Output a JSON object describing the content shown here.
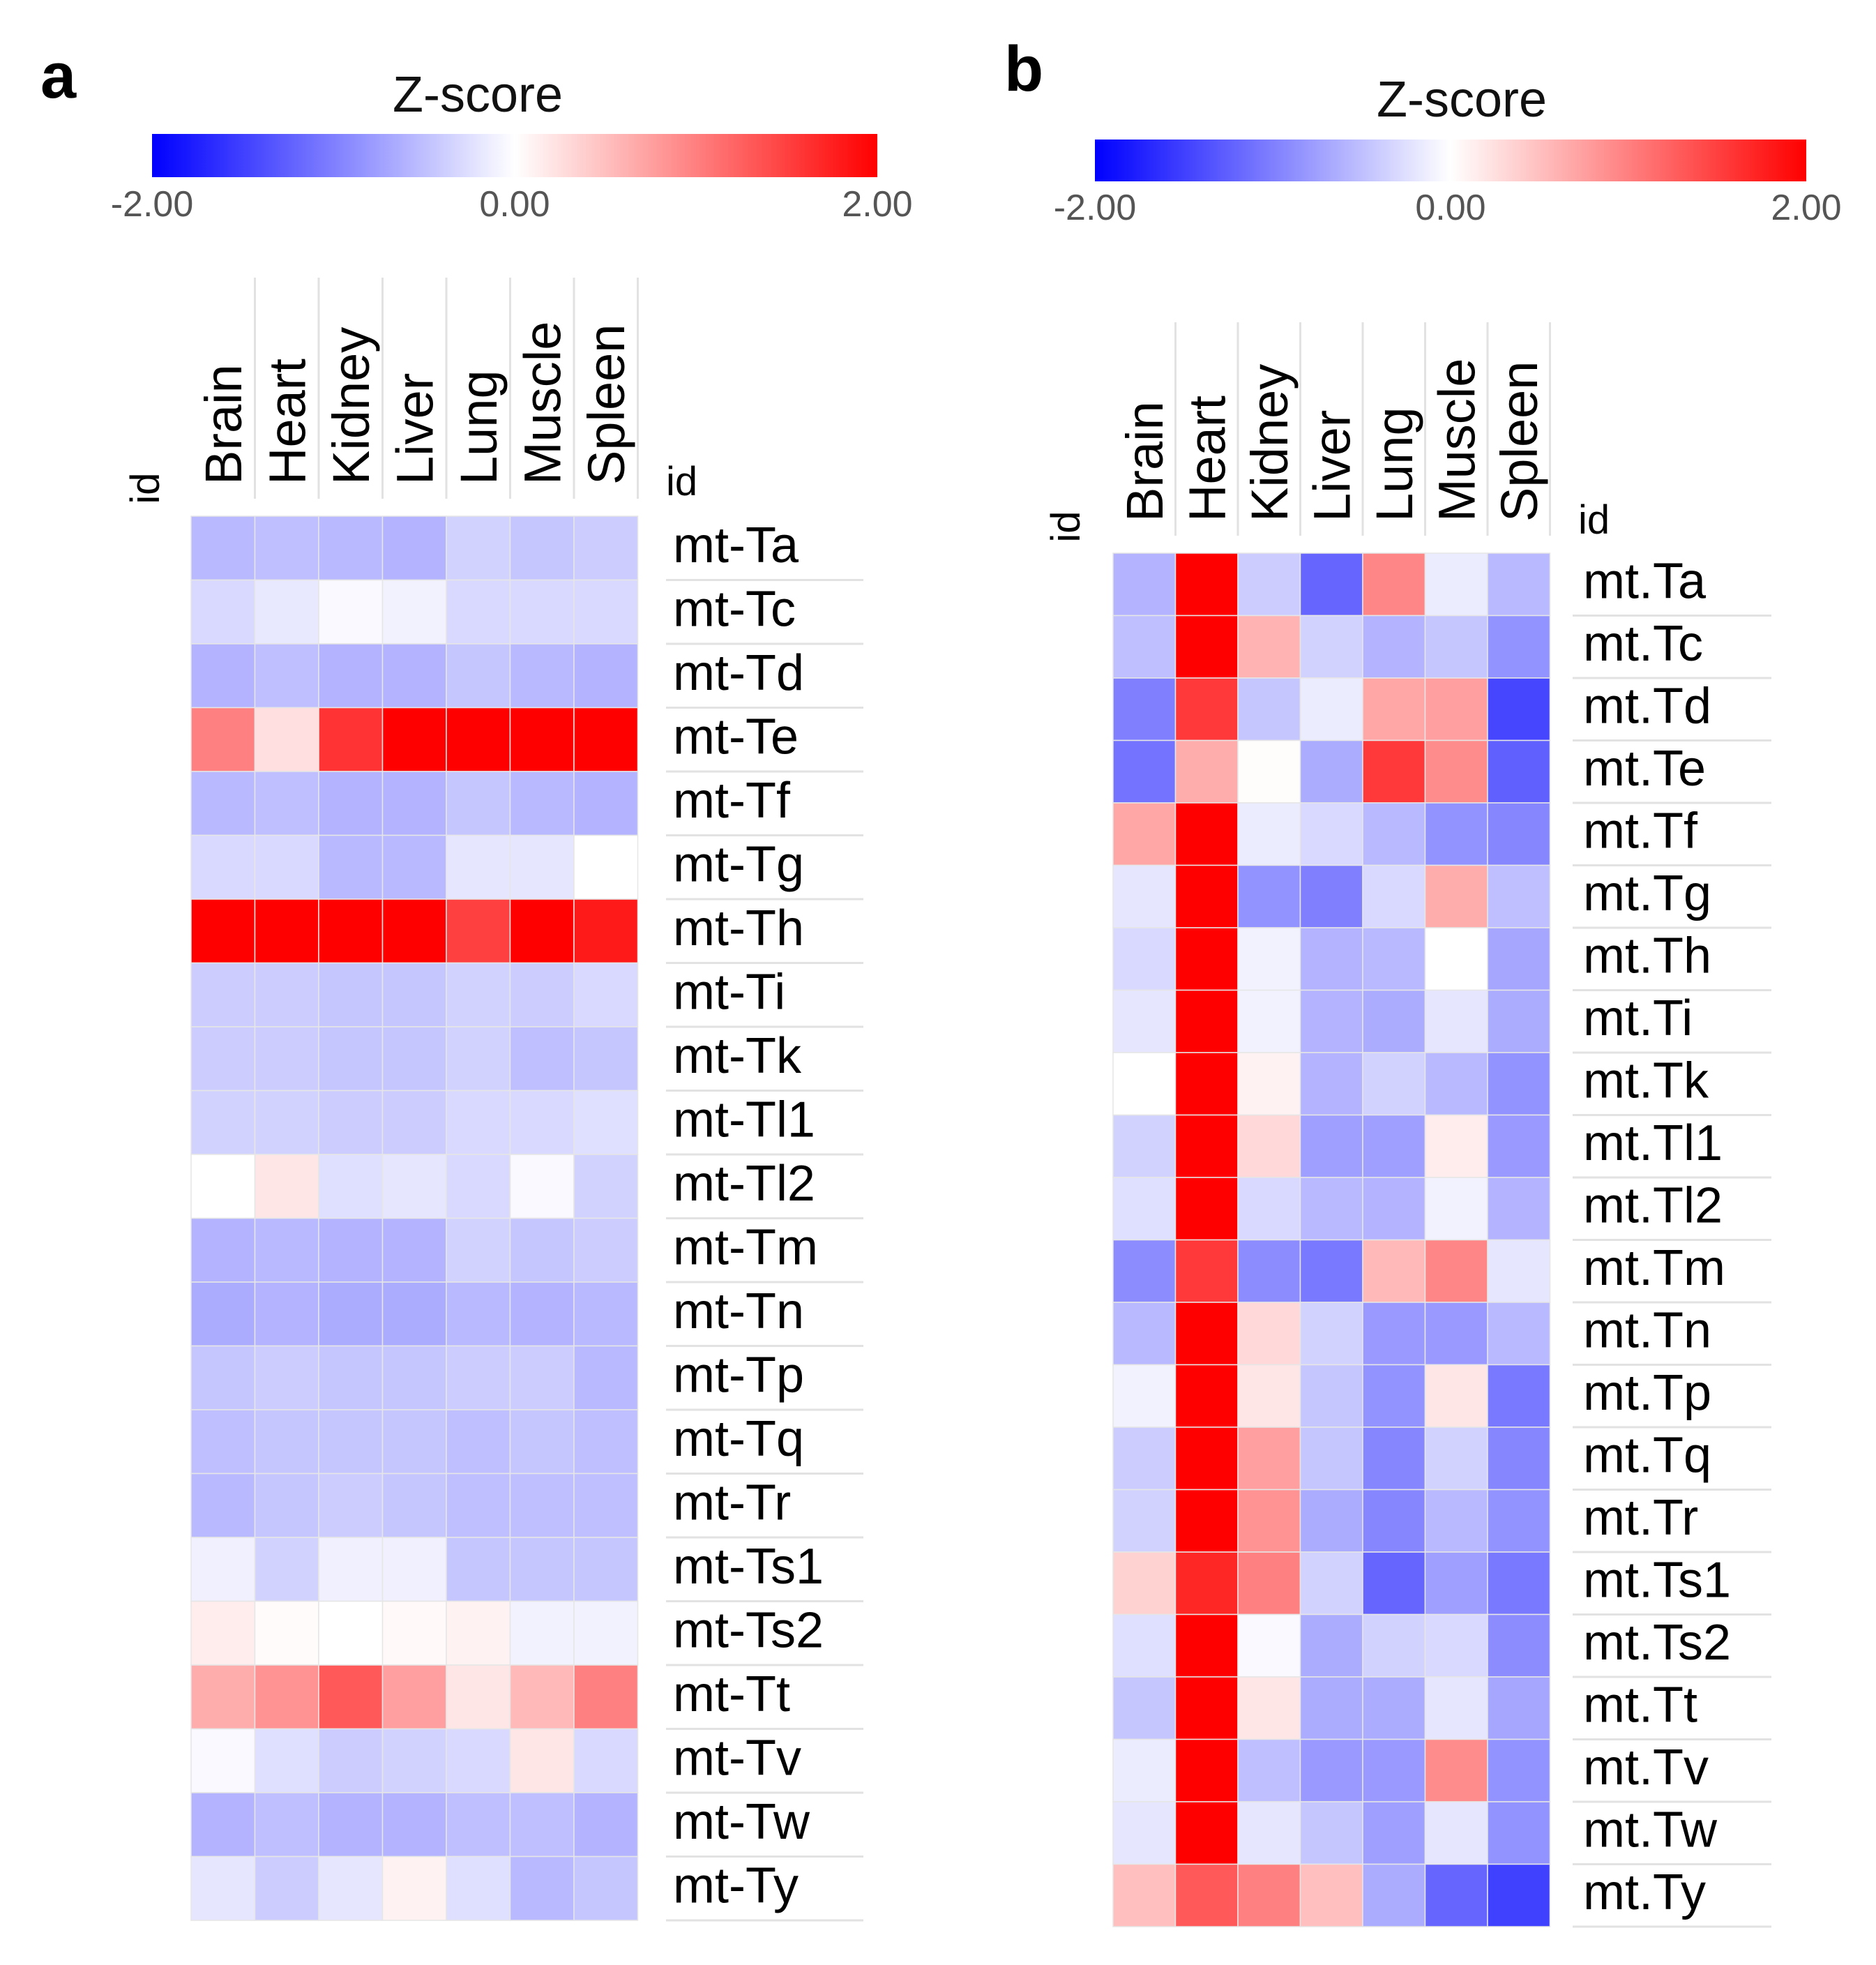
{
  "colors": {
    "low": "#0000ff",
    "mid": "#ffffff",
    "high": "#ff0000"
  },
  "chart_data": [
    {
      "type": "heatmap",
      "panel": "a",
      "title": "Z-score",
      "scale": {
        "min": -2.0,
        "max": 2.0,
        "ticks": [
          "-2.00",
          "0.00",
          "2.00"
        ]
      },
      "id_label": "id",
      "columns": [
        "Brain",
        "Heart",
        "Kidney",
        "Liver",
        "Lung",
        "Muscle",
        "Spleen"
      ],
      "rows": [
        "mt-Ta",
        "mt-Tc",
        "mt-Td",
        "mt-Te",
        "mt-Tf",
        "mt-Tg",
        "mt-Th",
        "mt-Ti",
        "mt-Tk",
        "mt-Tl1",
        "mt-Tl2",
        "mt-Tm",
        "mt-Tn",
        "mt-Tp",
        "mt-Tq",
        "mt-Tr",
        "mt-Ts1",
        "mt-Ts2",
        "mt-Tt",
        "mt-Tv",
        "mt-Tw",
        "mt-Ty"
      ],
      "values": [
        [
          -0.55,
          -0.5,
          -0.55,
          -0.6,
          -0.35,
          -0.45,
          -0.4
        ],
        [
          -0.3,
          -0.18,
          -0.05,
          -0.1,
          -0.3,
          -0.3,
          -0.3
        ],
        [
          -0.6,
          -0.5,
          -0.6,
          -0.6,
          -0.45,
          -0.55,
          -0.6
        ],
        [
          1.0,
          0.25,
          1.6,
          2.0,
          2.0,
          2.0,
          2.0
        ],
        [
          -0.55,
          -0.5,
          -0.6,
          -0.6,
          -0.45,
          -0.55,
          -0.6
        ],
        [
          -0.3,
          -0.3,
          -0.55,
          -0.55,
          -0.2,
          -0.2,
          0.0
        ],
        [
          2.0,
          2.0,
          2.0,
          2.0,
          1.5,
          2.0,
          1.8
        ],
        [
          -0.4,
          -0.4,
          -0.45,
          -0.45,
          -0.35,
          -0.4,
          -0.3
        ],
        [
          -0.4,
          -0.4,
          -0.45,
          -0.45,
          -0.35,
          -0.5,
          -0.45
        ],
        [
          -0.35,
          -0.35,
          -0.4,
          -0.4,
          -0.3,
          -0.3,
          -0.25
        ],
        [
          0.0,
          0.2,
          -0.25,
          -0.2,
          -0.3,
          -0.05,
          -0.35
        ],
        [
          -0.6,
          -0.55,
          -0.6,
          -0.6,
          -0.35,
          -0.45,
          -0.4
        ],
        [
          -0.65,
          -0.6,
          -0.65,
          -0.65,
          -0.55,
          -0.6,
          -0.55
        ],
        [
          -0.45,
          -0.4,
          -0.45,
          -0.45,
          -0.4,
          -0.4,
          -0.55
        ],
        [
          -0.5,
          -0.45,
          -0.45,
          -0.45,
          -0.5,
          -0.45,
          -0.5
        ],
        [
          -0.55,
          -0.45,
          -0.4,
          -0.45,
          -0.5,
          -0.5,
          -0.5
        ],
        [
          -0.12,
          -0.35,
          -0.12,
          -0.12,
          -0.45,
          -0.45,
          -0.45
        ],
        [
          0.15,
          0.03,
          0.0,
          0.05,
          0.1,
          -0.1,
          -0.1
        ],
        [
          0.65,
          0.85,
          1.3,
          0.75,
          0.2,
          0.55,
          1.0
        ],
        [
          -0.05,
          -0.25,
          -0.4,
          -0.35,
          -0.3,
          0.2,
          -0.3
        ],
        [
          -0.6,
          -0.5,
          -0.6,
          -0.6,
          -0.5,
          -0.5,
          -0.6
        ],
        [
          -0.2,
          -0.4,
          -0.2,
          0.1,
          -0.25,
          -0.55,
          -0.45
        ]
      ]
    },
    {
      "type": "heatmap",
      "panel": "b",
      "title": "Z-score",
      "scale": {
        "min": -2.0,
        "max": 2.0,
        "ticks": [
          "-2.00",
          "0.00",
          "2.00"
        ]
      },
      "id_label": "id",
      "columns": [
        "Brain",
        "Heart",
        "Kidney",
        "Liver",
        "Lung",
        "Muscle",
        "Spleen"
      ],
      "rows": [
        "mt.Ta",
        "mt.Tc",
        "mt.Td",
        "mt.Te",
        "mt.Tf",
        "mt.Tg",
        "mt.Th",
        "mt.Ti",
        "mt.Tk",
        "mt.Tl1",
        "mt.Tl2",
        "mt.Tm",
        "mt.Tn",
        "mt.Tp",
        "mt.Tq",
        "mt.Tr",
        "mt.Ts1",
        "mt.Ts2",
        "mt.Tt",
        "mt.Tv",
        "mt.Tw",
        "mt.Ty"
      ],
      "values": [
        [
          -0.6,
          2.0,
          -0.4,
          -1.2,
          0.95,
          -0.15,
          -0.55
        ],
        [
          -0.5,
          2.0,
          0.6,
          -0.35,
          -0.6,
          -0.45,
          -0.85
        ],
        [
          -1.0,
          1.55,
          -0.45,
          -0.15,
          0.7,
          0.75,
          -1.45
        ],
        [
          -1.1,
          0.65,
          0.02,
          -0.65,
          1.55,
          0.9,
          -1.25
        ],
        [
          0.7,
          2.0,
          -0.15,
          -0.3,
          -0.55,
          -0.85,
          -0.95
        ],
        [
          -0.2,
          2.0,
          -0.85,
          -1.0,
          -0.3,
          0.65,
          -0.5
        ],
        [
          -0.3,
          2.0,
          -0.1,
          -0.6,
          -0.55,
          0.0,
          -0.7
        ],
        [
          -0.2,
          2.0,
          -0.1,
          -0.6,
          -0.65,
          -0.2,
          -0.65
        ],
        [
          0.0,
          2.0,
          0.1,
          -0.6,
          -0.35,
          -0.55,
          -0.85
        ],
        [
          -0.35,
          2.0,
          0.3,
          -0.75,
          -0.75,
          0.15,
          -0.8
        ],
        [
          -0.25,
          2.0,
          -0.3,
          -0.55,
          -0.6,
          -0.1,
          -0.6
        ],
        [
          -0.9,
          1.55,
          -0.9,
          -1.05,
          0.55,
          0.95,
          -0.2
        ],
        [
          -0.55,
          2.0,
          0.3,
          -0.35,
          -0.8,
          -0.8,
          -0.55
        ],
        [
          -0.1,
          2.0,
          0.2,
          -0.45,
          -0.85,
          0.2,
          -1.05
        ],
        [
          -0.4,
          2.0,
          0.75,
          -0.45,
          -0.95,
          -0.35,
          -0.95
        ],
        [
          -0.35,
          2.0,
          0.85,
          -0.65,
          -0.95,
          -0.55,
          -0.85
        ],
        [
          0.35,
          1.7,
          1.0,
          -0.35,
          -1.2,
          -0.75,
          -1.05
        ],
        [
          -0.25,
          2.0,
          -0.05,
          -0.65,
          -0.35,
          -0.3,
          -0.9
        ],
        [
          -0.45,
          2.0,
          0.2,
          -0.65,
          -0.65,
          -0.2,
          -0.7
        ],
        [
          -0.15,
          2.0,
          -0.5,
          -0.8,
          -0.8,
          0.9,
          -0.85
        ],
        [
          -0.2,
          2.0,
          -0.2,
          -0.45,
          -0.75,
          -0.2,
          -0.85
        ],
        [
          0.5,
          1.3,
          1.0,
          0.5,
          -0.65,
          -1.2,
          -1.5
        ]
      ]
    }
  ]
}
